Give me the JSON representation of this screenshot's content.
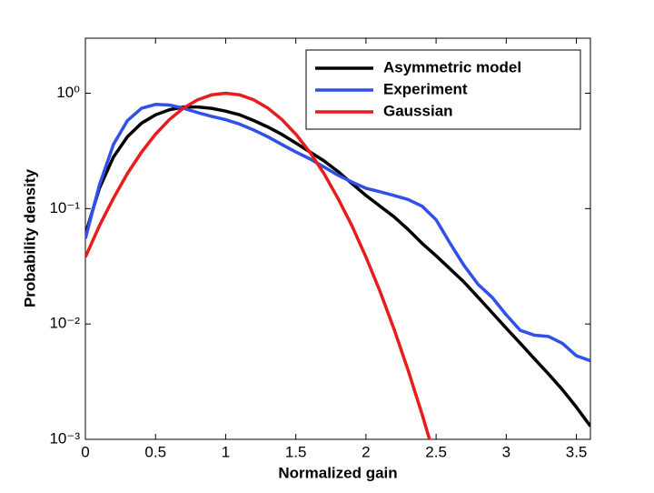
{
  "chart_data": {
    "type": "line",
    "xlabel": "Normalized gain",
    "ylabel": "Probability density",
    "log_y": true,
    "legend": "upper right",
    "x": [
      0,
      0.1,
      0.2,
      0.3,
      0.4,
      0.5,
      0.6,
      0.7,
      0.8,
      0.9,
      1.0,
      1.1,
      1.2,
      1.3,
      1.4,
      1.5,
      1.6,
      1.7,
      1.8,
      1.9,
      2.0,
      2.1,
      2.2,
      2.3,
      2.4,
      2.5,
      2.6,
      2.7,
      2.8,
      2.9,
      3.0,
      3.1,
      3.2,
      3.3,
      3.4,
      3.5,
      3.6
    ],
    "series": [
      {
        "name": "Asymmetric model",
        "color": "#000000",
        "values": [
          0.06,
          0.15,
          0.28,
          0.42,
          0.55,
          0.65,
          0.72,
          0.76,
          0.76,
          0.74,
          0.7,
          0.65,
          0.58,
          0.51,
          0.44,
          0.37,
          0.31,
          0.26,
          0.21,
          0.165,
          0.13,
          0.105,
          0.085,
          0.066,
          0.05,
          0.039,
          0.03,
          0.023,
          0.017,
          0.0125,
          0.0092,
          0.0068,
          0.005,
          0.0037,
          0.0027,
          0.0019,
          0.0013
        ]
      },
      {
        "name": "Experiment",
        "color": "#3050e8",
        "values": [
          0.055,
          0.16,
          0.36,
          0.58,
          0.74,
          0.8,
          0.79,
          0.74,
          0.68,
          0.63,
          0.59,
          0.54,
          0.48,
          0.42,
          0.36,
          0.31,
          0.27,
          0.23,
          0.195,
          0.17,
          0.15,
          0.14,
          0.13,
          0.12,
          0.105,
          0.08,
          0.05,
          0.032,
          0.022,
          0.017,
          0.012,
          0.0088,
          0.008,
          0.0078,
          0.0068,
          0.0053,
          0.0048
        ]
      },
      {
        "name": "Gaussian",
        "color": "#e81c1c",
        "values": [
          0.038,
          0.071,
          0.123,
          0.202,
          0.308,
          0.442,
          0.593,
          0.745,
          0.877,
          0.968,
          1.0,
          0.968,
          0.877,
          0.745,
          0.593,
          0.442,
          0.308,
          0.202,
          0.123,
          0.071,
          0.038,
          0.0192,
          0.00904,
          0.00399,
          0.00165,
          0.00064,
          null,
          null,
          null,
          null,
          null,
          null,
          null,
          null,
          null,
          null,
          null
        ]
      }
    ],
    "xlim": [
      0,
      3.6
    ],
    "ylim": [
      0.001,
      3
    ],
    "xticks": [
      0,
      0.5,
      1,
      1.5,
      2,
      2.5,
      3,
      3.5
    ],
    "yticks": [
      {
        "value": 0.001,
        "label": "10⁻³"
      },
      {
        "value": 0.01,
        "label": "10⁻²"
      },
      {
        "value": 0.1,
        "label": "10⁻¹"
      },
      {
        "value": 1,
        "label": "10⁰"
      }
    ]
  }
}
